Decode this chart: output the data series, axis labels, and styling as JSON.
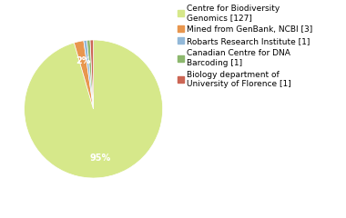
{
  "labels": [
    "Centre for Biodiversity\nGenomics [127]",
    "Mined from GenBank, NCBI [3]",
    "Robarts Research Institute [1]",
    "Canadian Centre for DNA\nBarcoding [1]",
    "Biology department of\nUniversity of Florence [1]"
  ],
  "values": [
    127,
    3,
    1,
    1,
    1
  ],
  "colors": [
    "#d6e88a",
    "#e8964e",
    "#92b8d8",
    "#8db86e",
    "#cc6655"
  ],
  "legend_labels": [
    "Centre for Biodiversity\nGenomics [127]",
    "Mined from GenBank, NCBI [3]",
    "Robarts Research Institute [1]",
    "Canadian Centre for DNA\nBarcoding [1]",
    "Biology department of\nUniversity of Florence [1]"
  ],
  "pct_threshold": 2.0,
  "background_color": "#ffffff",
  "text_color": "#ffffff",
  "font_size": 7,
  "legend_fontsize": 6.5
}
